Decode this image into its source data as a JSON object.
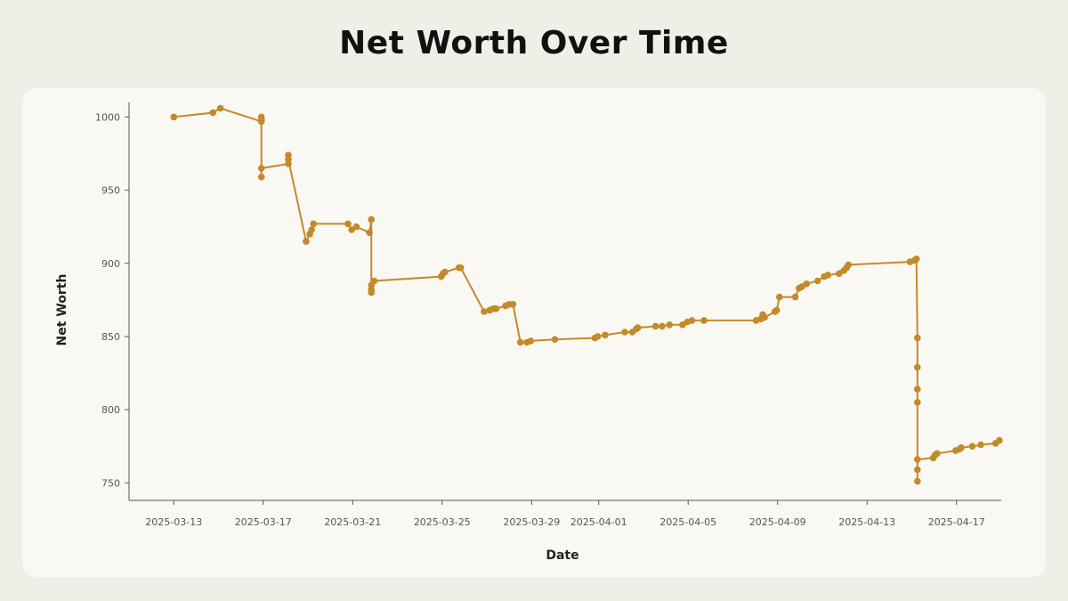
{
  "colors": {
    "background": "#f0efe7",
    "panel": "#faf8f3",
    "series": "#c38a2a",
    "axis": "#555555"
  },
  "chart_data": {
    "type": "line",
    "title": "Net Worth Over Time",
    "xlabel": "Date",
    "ylabel": "Net Worth",
    "grid": false,
    "xlim": [
      "2025-03-11",
      "2025-04-19"
    ],
    "ylim": [
      738,
      1010
    ],
    "x_ticks": [
      "2025-03-13",
      "2025-03-17",
      "2025-03-21",
      "2025-03-25",
      "2025-03-29",
      "2025-04-01",
      "2025-04-05",
      "2025-04-09",
      "2025-04-13",
      "2025-04-17"
    ],
    "y_ticks": [
      750,
      800,
      850,
      900,
      950,
      1000
    ],
    "series": [
      {
        "points": [
          [
            "2025-03-13T00:00",
            1000
          ],
          [
            "2025-03-14T18:00",
            1003
          ],
          [
            "2025-03-15T02:00",
            1006
          ],
          [
            "2025-03-16T22:00",
            997
          ],
          [
            "2025-03-16T22:00",
            1000
          ],
          [
            "2025-03-16T22:00",
            998
          ],
          [
            "2025-03-16T22:00",
            959
          ],
          [
            "2025-03-16T22:00",
            965
          ],
          [
            "2025-03-18T03:00",
            968
          ],
          [
            "2025-03-18T03:00",
            974
          ],
          [
            "2025-03-18T03:00",
            971
          ],
          [
            "2025-03-18T22:00",
            915
          ],
          [
            "2025-03-19T02:00",
            920
          ],
          [
            "2025-03-19T04:00",
            923
          ],
          [
            "2025-03-19T06:00",
            927
          ],
          [
            "2025-03-20T19:00",
            927
          ],
          [
            "2025-03-20T23:00",
            923
          ],
          [
            "2025-03-21T04:00",
            925
          ],
          [
            "2025-03-21T18:00",
            921
          ],
          [
            "2025-03-21T20:00",
            930
          ],
          [
            "2025-03-21T20:00",
            880
          ],
          [
            "2025-03-21T20:00",
            885
          ],
          [
            "2025-03-21T20:00",
            882
          ],
          [
            "2025-03-21T23:00",
            888
          ],
          [
            "2025-03-24T23:00",
            891
          ],
          [
            "2025-03-25T01:00",
            893
          ],
          [
            "2025-03-25T03:00",
            894
          ],
          [
            "2025-03-25T18:00",
            897
          ],
          [
            "2025-03-25T20:00",
            897
          ],
          [
            "2025-03-26T21:00",
            867
          ],
          [
            "2025-03-27T03:00",
            868
          ],
          [
            "2025-03-27T07:00",
            869
          ],
          [
            "2025-03-27T10:00",
            869
          ],
          [
            "2025-03-27T20:00",
            871
          ],
          [
            "2025-03-28T00:00",
            872
          ],
          [
            "2025-03-28T04:00",
            872
          ],
          [
            "2025-03-28T12:00",
            846
          ],
          [
            "2025-03-28T19:00",
            846
          ],
          [
            "2025-03-28T23:00",
            847
          ],
          [
            "2025-03-30T01:00",
            848
          ],
          [
            "2025-03-31T20:00",
            849
          ],
          [
            "2025-03-31T23:00",
            850
          ],
          [
            "2025-04-01T07:00",
            851
          ],
          [
            "2025-04-02T04:00",
            853
          ],
          [
            "2025-04-02T12:00",
            853
          ],
          [
            "2025-04-02T16:00",
            855
          ],
          [
            "2025-04-02T18:00",
            856
          ],
          [
            "2025-04-03T13:00",
            857
          ],
          [
            "2025-04-03T20:00",
            857
          ],
          [
            "2025-04-04T04:00",
            858
          ],
          [
            "2025-04-04T18:00",
            858
          ],
          [
            "2025-04-04T23:00",
            860
          ],
          [
            "2025-04-05T04:00",
            861
          ],
          [
            "2025-04-05T17:00",
            861
          ],
          [
            "2025-04-08T01:00",
            861
          ],
          [
            "2025-04-08T06:00",
            862
          ],
          [
            "2025-04-08T08:00",
            865
          ],
          [
            "2025-04-08T10:00",
            863
          ],
          [
            "2025-04-08T21:00",
            867
          ],
          [
            "2025-04-08T23:00",
            868
          ],
          [
            "2025-04-09T02:00",
            877
          ],
          [
            "2025-04-09T19:00",
            877
          ],
          [
            "2025-04-09T23:00",
            883
          ],
          [
            "2025-04-10T02:00",
            884
          ],
          [
            "2025-04-10T07:00",
            886
          ],
          [
            "2025-04-10T19:00",
            888
          ],
          [
            "2025-04-11T02:00",
            891
          ],
          [
            "2025-04-11T06:00",
            892
          ],
          [
            "2025-04-11T18:00",
            893
          ],
          [
            "2025-04-11T23:00",
            895
          ],
          [
            "2025-04-12T02:00",
            897
          ],
          [
            "2025-04-12T04:00",
            899
          ],
          [
            "2025-04-14T22:00",
            901
          ],
          [
            "2025-04-15T03:00",
            902
          ],
          [
            "2025-04-15T05:00",
            903
          ],
          [
            "2025-04-15T06:00",
            849
          ],
          [
            "2025-04-15T06:00",
            829
          ],
          [
            "2025-04-15T06:00",
            814
          ],
          [
            "2025-04-15T06:00",
            805
          ],
          [
            "2025-04-15T06:00",
            759
          ],
          [
            "2025-04-15T06:00",
            751
          ],
          [
            "2025-04-15T06:00",
            766
          ],
          [
            "2025-04-15T23:00",
            767
          ],
          [
            "2025-04-16T01:00",
            769
          ],
          [
            "2025-04-16T03:00",
            770
          ],
          [
            "2025-04-16T23:00",
            772
          ],
          [
            "2025-04-17T03:00",
            773
          ],
          [
            "2025-04-17T05:00",
            774
          ],
          [
            "2025-04-17T17:00",
            775
          ],
          [
            "2025-04-18T02:00",
            776
          ],
          [
            "2025-04-18T18:00",
            777
          ],
          [
            "2025-04-18T22:00",
            779
          ]
        ]
      }
    ]
  }
}
